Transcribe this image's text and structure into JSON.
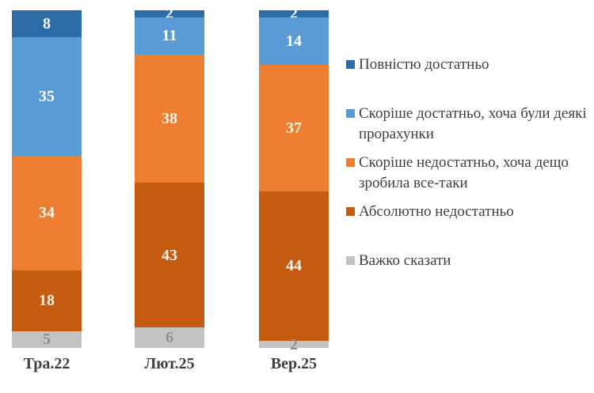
{
  "background_color": "#ffffff",
  "chart_data": {
    "type": "bar",
    "stacked": true,
    "percent_stacked": true,
    "orientation": "vertical",
    "grid": false,
    "legend_position": "right",
    "ylim": [
      0,
      100
    ],
    "xlabel": "",
    "ylabel": "",
    "title": "",
    "axis_label_color": "#3F3F3F",
    "legend_text_color": "#3F3F3F",
    "categories": [
      "Тра.22",
      "Лют.25",
      "Вер.25"
    ],
    "series": [
      {
        "name": "Повністю достатньо",
        "color": "#2D6CA8",
        "label_color": "#FFFFFF",
        "values": [
          8,
          2,
          2
        ]
      },
      {
        "name": "Скоріше достатньо, хоча були деякі прорахунки",
        "color": "#5B9BD5",
        "label_color": "#FFFFFF",
        "values": [
          35,
          11,
          14
        ]
      },
      {
        "name": "Скоріше недостатньо, хоча дещо зробила все-таки",
        "color": "#ED7D31",
        "label_color": "#FCF7EC",
        "values": [
          34,
          38,
          37
        ]
      },
      {
        "name": "Абсолютно недостатньо",
        "color": "#C55A11",
        "label_color": "#FCF7EC",
        "values": [
          18,
          43,
          44
        ]
      },
      {
        "name": "Важко сказати",
        "color": "#C3C3C3",
        "label_color": "#8F8F8F",
        "values": [
          5,
          6,
          2
        ]
      }
    ]
  }
}
